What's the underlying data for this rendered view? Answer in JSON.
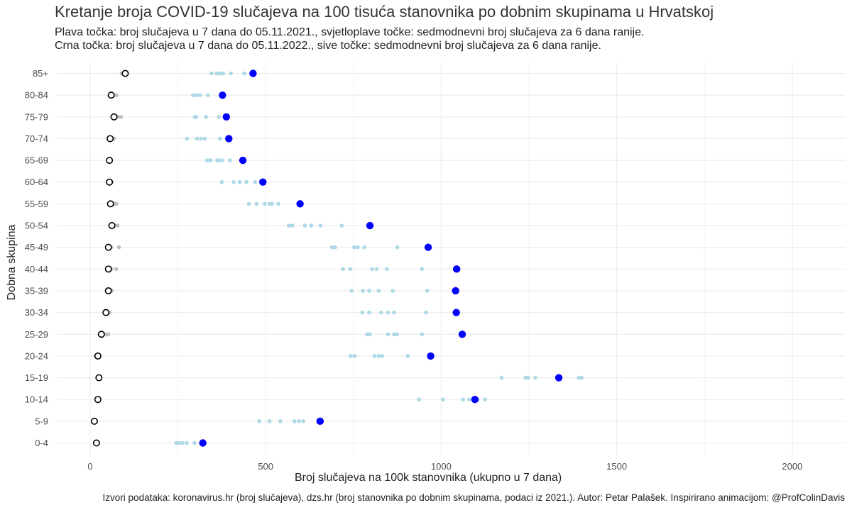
{
  "title": "Kretanje broja COVID-19 slučajeva na 100 tisuća stanovnika po dobnim skupinama u Hrvatskoj",
  "subtitle_line1": "Plava točka: broj slučajeva u 7 dana do 05.11.2021., svjetloplave točke: sedmodnevni broj slučajeva za 6 dana ranije.",
  "subtitle_line2": "Crna točka: broj slučajeva u 7 dana do 05.11.2022., sive točke: sedmodnevni broj slučajeva za 6 dana ranije.",
  "caption": "Izvori podataka: koronavirus.hr (broj slučajeva), dzs.hr (broj stanovnika po dobnim skupinama, podaci iz 2021.). Autor: Petar Palašek. Inspirirano animacijom: @ProfColinDavis",
  "chart_data": {
    "type": "scatter",
    "xlabel": "Broj slučajeva na 100k stanovnika (ukupno u 7 dana)",
    "ylabel": "Dobna skupina",
    "xlim": [
      -95,
      2150
    ],
    "x_ticks": [
      0,
      500,
      1000,
      1500,
      2000
    ],
    "grid": true,
    "colors": {
      "blue_2021": "#0000ff",
      "lightblue_2021_earlier": "#add8e6",
      "black_2022": "#000000",
      "grey_2022_earlier": "#bebebe"
    },
    "categories": [
      "0-4",
      "5-9",
      "10-14",
      "15-19",
      "20-24",
      "25-29",
      "30-34",
      "35-39",
      "40-44",
      "45-49",
      "50-54",
      "55-59",
      "60-64",
      "65-69",
      "70-74",
      "75-79",
      "80-84",
      "85+"
    ],
    "series": [
      {
        "values": [
          321,
          655,
          1096,
          1335,
          970,
          1060,
          1043,
          1041,
          1044,
          963,
          797,
          598,
          492,
          435,
          395,
          388,
          377,
          464
        ]
      },
      {
        "values": [
          [
            245,
            253,
            263,
            275,
            297
          ],
          [
            482,
            511,
            542,
            582,
            595,
            607
          ],
          [
            937,
            1005,
            1062,
            1104,
            1125,
            1080
          ],
          [
            1172,
            1240,
            1248,
            1268,
            1392,
            1400
          ],
          [
            742,
            753,
            810,
            822,
            832,
            905
          ],
          [
            789,
            797,
            848,
            866,
            874,
            945
          ],
          [
            775,
            795,
            829,
            849,
            866,
            957
          ],
          [
            745,
            777,
            795,
            822,
            862,
            960
          ],
          [
            720,
            741,
            803,
            816,
            845,
            945
          ],
          [
            689,
            698,
            752,
            762,
            781,
            875
          ],
          [
            566,
            576,
            612,
            630,
            656,
            717
          ],
          [
            452,
            474,
            497,
            511,
            518,
            536
          ],
          [
            375,
            409,
            426,
            445,
            470
          ],
          [
            333,
            343,
            362,
            366,
            375,
            398
          ],
          [
            276,
            304,
            316,
            327,
            370
          ],
          [
            298,
            302,
            330,
            367
          ],
          [
            293,
            302,
            313,
            335
          ],
          [
            346,
            360,
            368,
            375,
            379,
            401,
            439
          ]
        ]
      },
      {
        "values": [
          18,
          12,
          22,
          25,
          22,
          32,
          45,
          52,
          52,
          52,
          62,
          58,
          55,
          55,
          57,
          68,
          60,
          100
        ]
      },
      {
        "values": [
          [
            22,
            18,
            20,
            17
          ],
          [
            15,
            13,
            10,
            12
          ],
          [
            20,
            25,
            18,
            22
          ],
          [
            22,
            28,
            24,
            26
          ],
          [
            15,
            20,
            18,
            22
          ],
          [
            38,
            48,
            52,
            42
          ],
          [
            40,
            48,
            52,
            55
          ],
          [
            50,
            58,
            62,
            55
          ],
          [
            50,
            58,
            74,
            60
          ],
          [
            50,
            60,
            82,
            55
          ],
          [
            62,
            70,
            78,
            68
          ],
          [
            58,
            65,
            75,
            70
          ],
          [
            52,
            58,
            62,
            55
          ],
          [
            52,
            58,
            60,
            55
          ],
          [
            55,
            62,
            68,
            60
          ],
          [
            65,
            75,
            88,
            80
          ],
          [
            55,
            65,
            75,
            68
          ],
          [
            90,
            95,
            105,
            98
          ]
        ]
      }
    ]
  }
}
